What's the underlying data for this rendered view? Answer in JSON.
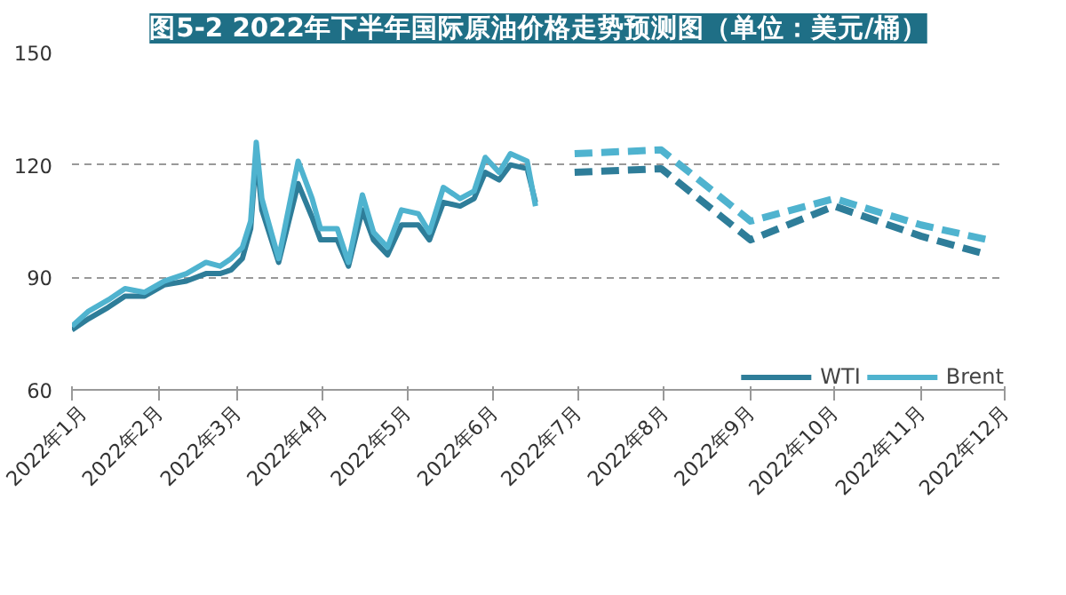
{
  "chart_data": {
    "type": "line",
    "title": "图5-2 2022年下半年国际原油价格走势预测图（单位：美元/桶）",
    "xlim": [
      "2022-01-01",
      "2022-12-01"
    ],
    "xticks": [
      {
        "value": "2022-01-01",
        "label": "2022年1月"
      },
      {
        "value": "2022-02-01",
        "label": "2022年2月"
      },
      {
        "value": "2022-03-01",
        "label": "2022年3月"
      },
      {
        "value": "2022-04-01",
        "label": "2022年4月"
      },
      {
        "value": "2022-05-01",
        "label": "2022年5月"
      },
      {
        "value": "2022-06-01",
        "label": "2022年6月"
      },
      {
        "value": "2022-07-01",
        "label": "2022年7月"
      },
      {
        "value": "2022-08-01",
        "label": "2022年8月"
      },
      {
        "value": "2022-09-01",
        "label": "2022年9月"
      },
      {
        "value": "2022-10-01",
        "label": "2022年10月"
      },
      {
        "value": "2022-11-01",
        "label": "2022年11月"
      },
      {
        "value": "2022-12-01",
        "label": "2022年12月"
      }
    ],
    "ylim": [
      60,
      150
    ],
    "yticks": [
      60,
      90,
      120,
      150
    ],
    "grid": "y",
    "legend": "bottom right",
    "line_style": "solid",
    "series": [
      {
        "name": "WTI",
        "color": "#2e7d99",
        "x": [
          "2022-01-01",
          "2022-01-07",
          "2022-01-14",
          "2022-01-20",
          "2022-01-27",
          "2022-02-03",
          "2022-02-11",
          "2022-02-18",
          "2022-02-23",
          "2022-02-27",
          "2022-03-03",
          "2022-03-06",
          "2022-03-08",
          "2022-03-10",
          "2022-03-16",
          "2022-03-23",
          "2022-03-28",
          "2022-03-31",
          "2022-04-06",
          "2022-04-10",
          "2022-04-15",
          "2022-04-19",
          "2022-04-24",
          "2022-04-29",
          "2022-05-05",
          "2022-05-09",
          "2022-05-14",
          "2022-05-20",
          "2022-05-25",
          "2022-05-29",
          "2022-06-03",
          "2022-06-07",
          "2022-06-13",
          "2022-06-16"
        ],
        "values": [
          76,
          79,
          82,
          85,
          85,
          88,
          89,
          91,
          91,
          92,
          95,
          103,
          123,
          108,
          94,
          115,
          106,
          100,
          100,
          93,
          108,
          100,
          96,
          104,
          104,
          100,
          110,
          109,
          111,
          118,
          116,
          120,
          119,
          110
        ]
      },
      {
        "name": "Brent",
        "color": "#4fb3cf",
        "x": [
          "2022-01-01",
          "2022-01-07",
          "2022-01-14",
          "2022-01-20",
          "2022-01-27",
          "2022-02-03",
          "2022-02-11",
          "2022-02-18",
          "2022-02-23",
          "2022-02-27",
          "2022-03-03",
          "2022-03-06",
          "2022-03-08",
          "2022-03-10",
          "2022-03-16",
          "2022-03-23",
          "2022-03-28",
          "2022-03-31",
          "2022-04-06",
          "2022-04-10",
          "2022-04-15",
          "2022-04-19",
          "2022-04-24",
          "2022-04-29",
          "2022-05-05",
          "2022-05-09",
          "2022-05-14",
          "2022-05-20",
          "2022-05-25",
          "2022-05-29",
          "2022-06-03",
          "2022-06-07",
          "2022-06-13",
          "2022-06-16"
        ],
        "values": [
          77,
          81,
          84,
          87,
          86,
          89,
          91,
          94,
          93,
          95,
          98,
          105,
          126,
          111,
          95,
          121,
          111,
          103,
          103,
          94,
          112,
          102,
          98,
          108,
          107,
          102,
          114,
          111,
          113,
          122,
          118,
          123,
          121,
          109
        ]
      },
      {
        "color": "#2e7d99",
        "line_style": "dashed",
        "x": [
          "2022-06-30",
          "2022-07-31",
          "2022-09-01",
          "2022-10-01",
          "2022-11-01",
          "2022-11-25"
        ],
        "values": [
          118,
          119,
          100,
          109,
          101,
          96
        ]
      },
      {
        "color": "#4fb3cf",
        "line_style": "dashed",
        "x": [
          "2022-06-30",
          "2022-07-31",
          "2022-09-01",
          "2022-10-01",
          "2022-11-01",
          "2022-11-25"
        ],
        "values": [
          123,
          124,
          105,
          111,
          104,
          100
        ]
      }
    ]
  }
}
